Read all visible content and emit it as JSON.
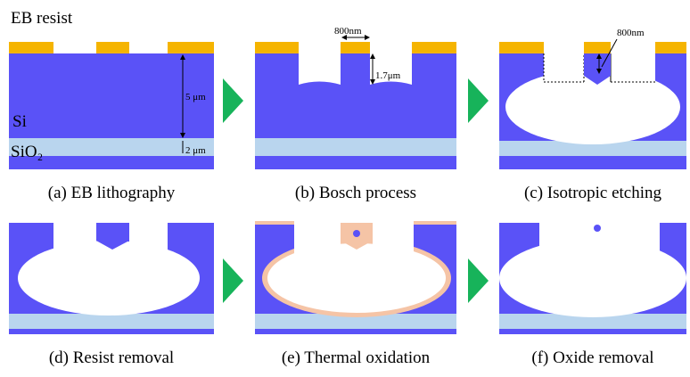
{
  "labels": {
    "resist": "EB resist",
    "si": "Si",
    "sio2": "SiO₂"
  },
  "annotations": {
    "width_b": "800nm",
    "depth_b": "1.7μm",
    "width_c": "800nm",
    "si_thickness": "5 μm",
    "oxide_thickness": "2 μm"
  },
  "captions": [
    "(a) EB lithography",
    "(b) Bosch process",
    "(c) Isotropic etching",
    "(d) Resist removal",
    "(e) Thermal oxidation",
    "(f) Oxide removal"
  ]
}
